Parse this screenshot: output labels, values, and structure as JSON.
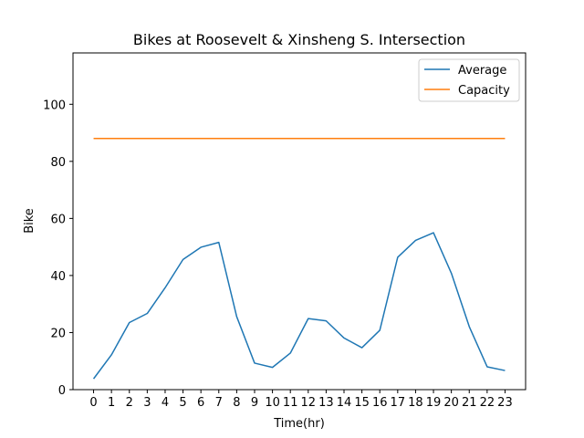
{
  "chart_data": {
    "type": "line",
    "title": "Bikes at Roosevelt & Xinsheng S. Intersection",
    "xlabel": "Time(hr)",
    "ylabel": "Bike",
    "x": [
      0,
      1,
      2,
      3,
      4,
      5,
      6,
      7,
      8,
      9,
      10,
      11,
      12,
      13,
      14,
      15,
      16,
      17,
      18,
      19,
      20,
      21,
      22,
      23
    ],
    "xlim": [
      -1.15,
      24.15
    ],
    "ylim": [
      0,
      118
    ],
    "yticks": [
      0,
      20,
      40,
      60,
      80,
      100
    ],
    "grid": false,
    "legend_position": "top-right",
    "series": [
      {
        "name": "Average",
        "color": "#1f77b4",
        "values": [
          3.8,
          12.2,
          23.5,
          26.7,
          35.7,
          45.6,
          49.9,
          51.6,
          25.6,
          9.3,
          7.8,
          12.8,
          24.9,
          24.1,
          18.1,
          14.7,
          20.8,
          46.4,
          52.3,
          55.0,
          40.8,
          22.1,
          8.0,
          6.7
        ]
      },
      {
        "name": "Capacity",
        "color": "#ff7f0e",
        "values": [
          88,
          88,
          88,
          88,
          88,
          88,
          88,
          88,
          88,
          88,
          88,
          88,
          88,
          88,
          88,
          88,
          88,
          88,
          88,
          88,
          88,
          88,
          88,
          88
        ]
      }
    ]
  }
}
